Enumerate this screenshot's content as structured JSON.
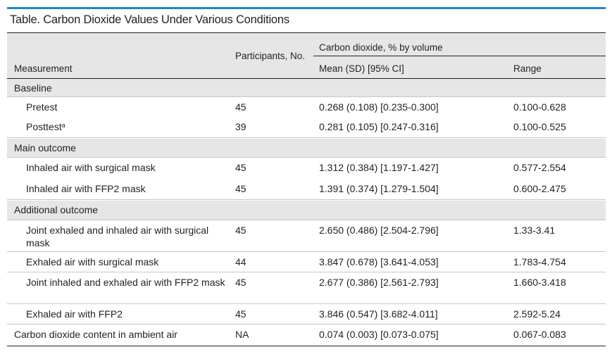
{
  "title": "Table. Carbon Dioxide Values Under Various Conditions",
  "headers": {
    "measurement": "Measurement",
    "participants": "Participants, No.",
    "co2_group": "Carbon dioxide, % by volume",
    "mean": "Mean (SD) [95% CI]",
    "range": "Range"
  },
  "rows": [
    {
      "type": "section",
      "label": "Baseline"
    },
    {
      "type": "data",
      "label": "Pretest",
      "n": "45",
      "mean": "0.268 (0.108) [0.235-0.300]",
      "range": "0.100-0.628"
    },
    {
      "type": "data",
      "label": "Posttest",
      "footnote": "a",
      "n": "39",
      "mean": "0.281 (0.105) [0.247-0.316]",
      "range": "0.100-0.525"
    },
    {
      "type": "section",
      "label": "Main outcome"
    },
    {
      "type": "data",
      "label": "Inhaled air with surgical mask",
      "n": "45",
      "mean": "1.312 (0.384) [1.197-1.427]",
      "range": "0.577-2.554"
    },
    {
      "type": "data",
      "label": "Inhaled air with FFP2 mask",
      "n": "45",
      "mean": "1.391 (0.374) [1.279-1.504]",
      "range": "0.600-2.475"
    },
    {
      "type": "section",
      "label": "Additional outcome"
    },
    {
      "type": "data",
      "label": "Joint exhaled and inhaled air with surgical mask",
      "n": "45",
      "mean": "2.650 (0.486) [2.504-2.796]",
      "range": "1.33-3.41"
    },
    {
      "type": "data",
      "label": "Exhaled air with surgical mask",
      "n": "44",
      "mean": "3.847 (0.678) [3.641-4.053]",
      "range": "1.783-4.754"
    },
    {
      "type": "data",
      "label": "Joint inhaled and exhaled air with FFP2 mask",
      "n": "45",
      "mean": "2.677 (0.386) [2.561-2.793]",
      "range": "1.660-3.418"
    },
    {
      "type": "data",
      "label": "Exhaled air with FFP2",
      "n": "45",
      "mean": "3.846 (0.547) [3.682-4.011]",
      "range": "2.592-5.24"
    },
    {
      "type": "total",
      "label": "Carbon dioxide content in ambient air",
      "n": "NA",
      "mean": "0.074 (0.003) [0.073-0.075]",
      "range": "0.067-0.083"
    }
  ],
  "colors": {
    "accent_bar": "#1f86c4",
    "row_shade": "#e6e6e6",
    "text": "#231f20"
  }
}
